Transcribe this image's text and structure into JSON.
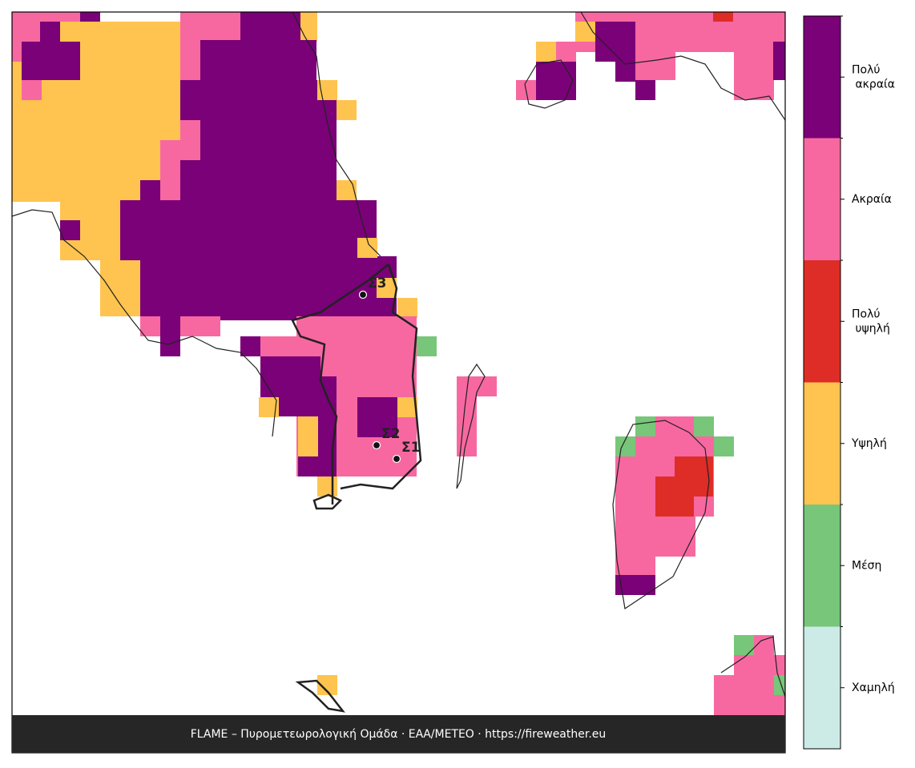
{
  "legend": {
    "classes": [
      {
        "label": "Χαμηλή",
        "color": "#cdebe6"
      },
      {
        "label": "Μέση",
        "color": "#78c679"
      },
      {
        "label": "Υψηλή",
        "color": "#fec44f"
      },
      {
        "label": "Πολύ υψηλή",
        "color": "#de2d26"
      },
      {
        "label": "Ακραία",
        "color": "#f768a1"
      },
      {
        "label": "Πολύ ακραία",
        "color": "#7a0177"
      }
    ]
  },
  "markers": [
    {
      "label": "Σ1"
    },
    {
      "label": "Σ2"
    },
    {
      "label": "Σ3"
    }
  ],
  "footer": "FLAME – Πυρομετεωρολογική Ομάδα · ΕΑΑ/METEO · https://fireweather.eu"
}
